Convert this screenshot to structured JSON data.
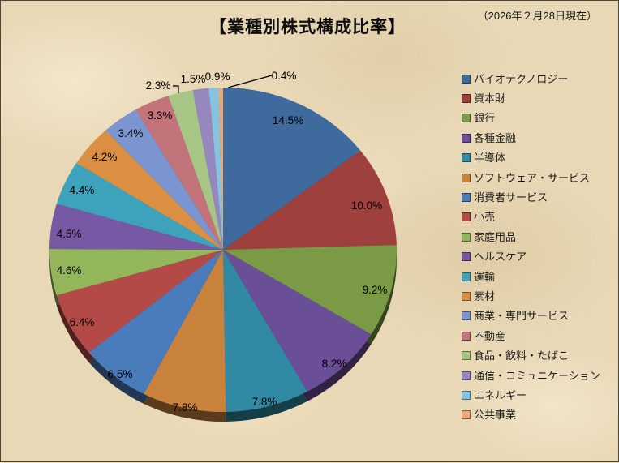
{
  "header": {
    "title": "【業種別株式構成比率】",
    "date_note": "（2026年２月28日現在）"
  },
  "chart_data": {
    "type": "pie",
    "title": "業種別株式構成比率",
    "as_of": "2026年2月28日現在",
    "unit": "%",
    "style": "3d-pie",
    "start_angle_deg": 0,
    "direction": "clockwise",
    "legend_position": "right",
    "slices": [
      {
        "label": "バイオテクノロジー",
        "value": 14.5,
        "pct_label": "14.5%",
        "color": "#3F6A9D"
      },
      {
        "label": "資本財",
        "value": 10.0,
        "pct_label": "10.0%",
        "color": "#9D403E"
      },
      {
        "label": "銀行",
        "value": 9.2,
        "pct_label": "9.2%",
        "color": "#7A9A45"
      },
      {
        "label": "各種金融",
        "value": 8.2,
        "pct_label": "8.2%",
        "color": "#6B4E98"
      },
      {
        "label": "半導体",
        "value": 7.8,
        "pct_label": "7.8%",
        "color": "#3189A3"
      },
      {
        "label": "ソフトウェア・サービス",
        "value": 7.8,
        "pct_label": "7.8%",
        "color": "#C8823C"
      },
      {
        "label": "消費者サービス",
        "value": 6.5,
        "pct_label": "6.5%",
        "color": "#4A7BBB"
      },
      {
        "label": "小売",
        "value": 6.4,
        "pct_label": "6.4%",
        "color": "#B34A48"
      },
      {
        "label": "家庭用品",
        "value": 4.6,
        "pct_label": "4.6%",
        "color": "#93B75A"
      },
      {
        "label": "ヘルスケア",
        "value": 4.5,
        "pct_label": "4.5%",
        "color": "#7758A5"
      },
      {
        "label": "運輸",
        "value": 4.4,
        "pct_label": "4.4%",
        "color": "#3DA3BC"
      },
      {
        "label": "素材",
        "value": 4.2,
        "pct_label": "4.2%",
        "color": "#DB8F42"
      },
      {
        "label": "商業・専門サービス",
        "value": 3.4,
        "pct_label": "3.4%",
        "color": "#7A95CF"
      },
      {
        "label": "不動産",
        "value": 3.3,
        "pct_label": "3.3%",
        "color": "#C3747A"
      },
      {
        "label": "食品・飲料・たばこ",
        "value": 2.3,
        "pct_label": "2.3%",
        "color": "#A7C685"
      },
      {
        "label": "通信・コミュニケーション",
        "value": 1.5,
        "pct_label": "1.5%",
        "color": "#9687BF"
      },
      {
        "label": "エネルギー",
        "value": 0.9,
        "pct_label": "0.9%",
        "color": "#87C3DF"
      },
      {
        "label": "公共事業",
        "value": 0.4,
        "pct_label": "0.4%",
        "color": "#EDA974"
      }
    ]
  }
}
